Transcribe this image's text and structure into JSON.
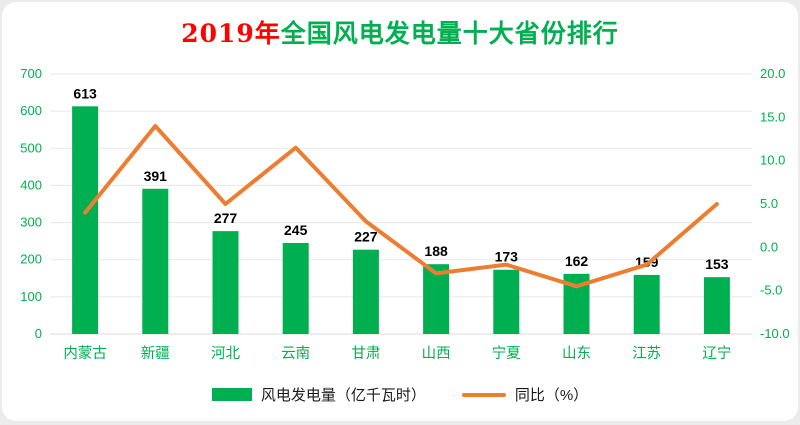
{
  "chart_data": {
    "type": "combo-bar-line",
    "title_year": "2019年",
    "title_rest": "全国风电发电量十大省份排行",
    "categories": [
      "内蒙古",
      "新疆",
      "河北",
      "云南",
      "甘肃",
      "山西",
      "宁夏",
      "山东",
      "江苏",
      "辽宁"
    ],
    "series": [
      {
        "name": "风电发电量（亿千瓦时）",
        "type": "bar",
        "axis": "left",
        "color": "#00B050",
        "values": [
          613,
          391,
          277,
          245,
          227,
          188,
          173,
          162,
          159,
          153
        ]
      },
      {
        "name": "同比（%）",
        "type": "line",
        "axis": "right",
        "color": "#ED7D31",
        "values": [
          4.0,
          14.0,
          5.0,
          11.5,
          3.0,
          -3.0,
          -2.0,
          -4.5,
          -2.0,
          5.0
        ]
      }
    ],
    "left_axis": {
      "min": 0,
      "max": 700,
      "step": 100
    },
    "right_axis": {
      "min": -10,
      "max": 20,
      "step": 5,
      "decimals": 1
    },
    "grid": true,
    "legend_position": "bottom",
    "colors": {
      "title_year": "#FF0000",
      "title_rest": "#00B050",
      "axis_text": "#00B050",
      "value_labels": "#000000",
      "grid": "#E7E7E7",
      "baseline": "#D9D9D9"
    }
  }
}
